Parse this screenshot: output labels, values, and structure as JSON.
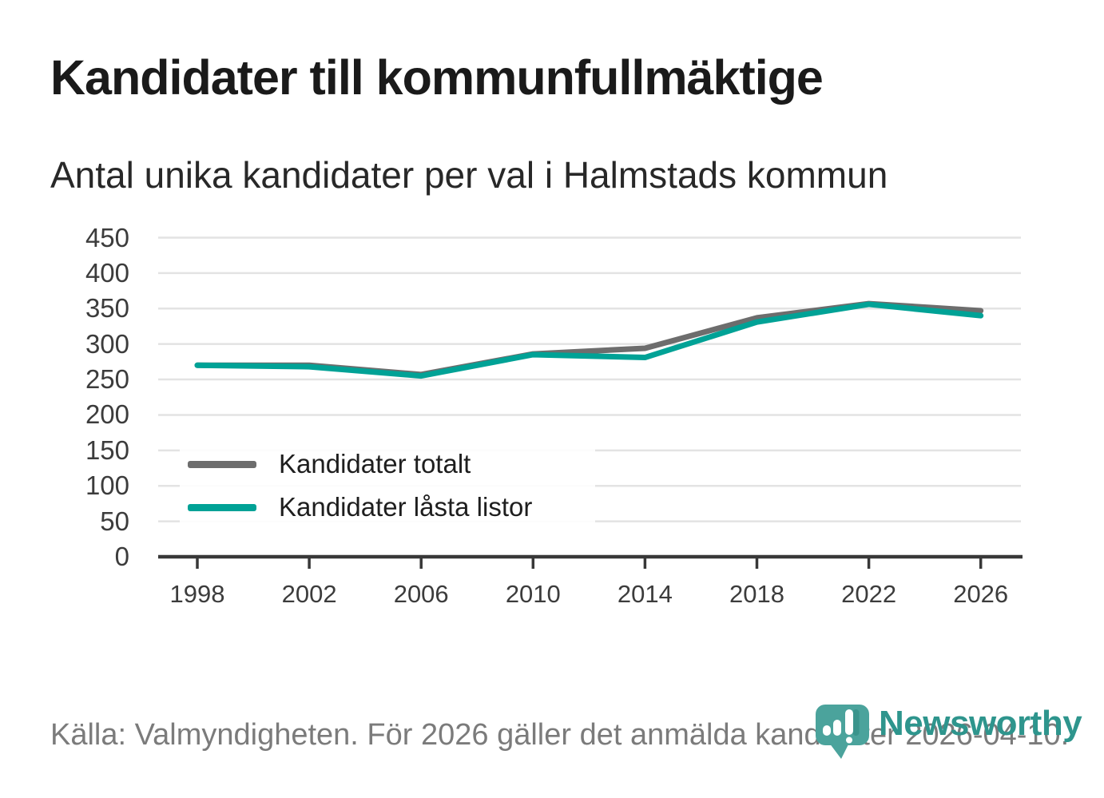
{
  "title": "Kandidater till kommunfullmäktige",
  "subtitle": "Antal unika kandidater per val i Halmstads kommun",
  "source": "Källa: Valmyndigheten. För 2026 gäller det anmälda kandidater 2026-04-10.",
  "branding": {
    "name": "Newsworthy",
    "logo_icon": "bar-chart-map-pin-icon",
    "wordmark_color": "#2e958d",
    "logo_color": "#4ba39c",
    "logo_shadow_color": "#3a948c"
  },
  "chart_data": {
    "type": "line",
    "title": "Kandidater till kommunfullmäktige",
    "subtitle": "Antal unika kandidater per val i Halmstads kommun",
    "x": [
      1998,
      2002,
      2006,
      2010,
      2014,
      2018,
      2022,
      2026
    ],
    "xtick_labels": [
      "1998",
      "2002",
      "2006",
      "2010",
      "2014",
      "2018",
      "2022",
      "2026"
    ],
    "series": [
      {
        "name": "Kandidater totalt",
        "color": "#6d6d6d",
        "values": [
          270,
          270,
          257,
          286,
          294,
          337,
          357,
          347
        ]
      },
      {
        "name": "Kandidater låsta listor",
        "color": "#00a296",
        "values": [
          270,
          268,
          255,
          285,
          281,
          331,
          356,
          340
        ]
      }
    ],
    "ylim": [
      0,
      450
    ],
    "yticks": [
      0,
      50,
      100,
      150,
      200,
      250,
      300,
      350,
      400,
      450
    ],
    "grid": "horizontal",
    "grid_color": "#e3e3e3",
    "axis_color": "#383838",
    "legend_position": "inside-bottom-left"
  }
}
